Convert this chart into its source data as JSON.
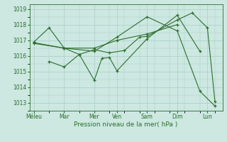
{
  "title": "",
  "xlabel": "Pression niveau de la mer( hPa )",
  "ylabel": "",
  "background_color": "#cce8e0",
  "grid_color": "#aacccc",
  "line_color": "#2d6e2d",
  "xtick_labels": [
    "Méleu",
    "Mar",
    "Mer",
    "Ven",
    "Sam",
    "Dim",
    "Lun"
  ],
  "xtick_positions": [
    0,
    2,
    4,
    5.5,
    7.5,
    9.5,
    11.5
  ],
  "xlim": [
    -0.3,
    12.5
  ],
  "ylim": [
    1012.5,
    1019.3
  ],
  "yticks": [
    1013,
    1014,
    1015,
    1016,
    1017,
    1018,
    1019
  ],
  "series": [
    {
      "x": [
        0,
        1,
        2,
        3,
        4,
        5,
        6,
        7,
        7.5,
        9.5,
        10.5,
        11.5,
        12
      ],
      "y": [
        1016.9,
        1017.8,
        1016.5,
        1016.1,
        1016.4,
        1016.2,
        1016.35,
        1017.2,
        1017.25,
        1018.3,
        1018.75,
        1017.8,
        1013.1
      ]
    },
    {
      "x": [
        1,
        2,
        3,
        4,
        4.5,
        5,
        5.5,
        7.5,
        9.5,
        11
      ],
      "y": [
        1015.65,
        1015.3,
        1016.1,
        1014.45,
        1015.85,
        1015.9,
        1015.05,
        1017.1,
        1018.6,
        1016.3
      ]
    },
    {
      "x": [
        0,
        2,
        4,
        5.5,
        7.5,
        9.5
      ],
      "y": [
        1016.85,
        1016.5,
        1016.5,
        1017.0,
        1017.4,
        1018.0
      ]
    },
    {
      "x": [
        0,
        2,
        4,
        5.5,
        7.5,
        9.5,
        11,
        12
      ],
      "y": [
        1016.8,
        1016.5,
        1016.3,
        1017.2,
        1018.5,
        1017.6,
        1013.75,
        1012.8
      ]
    }
  ]
}
